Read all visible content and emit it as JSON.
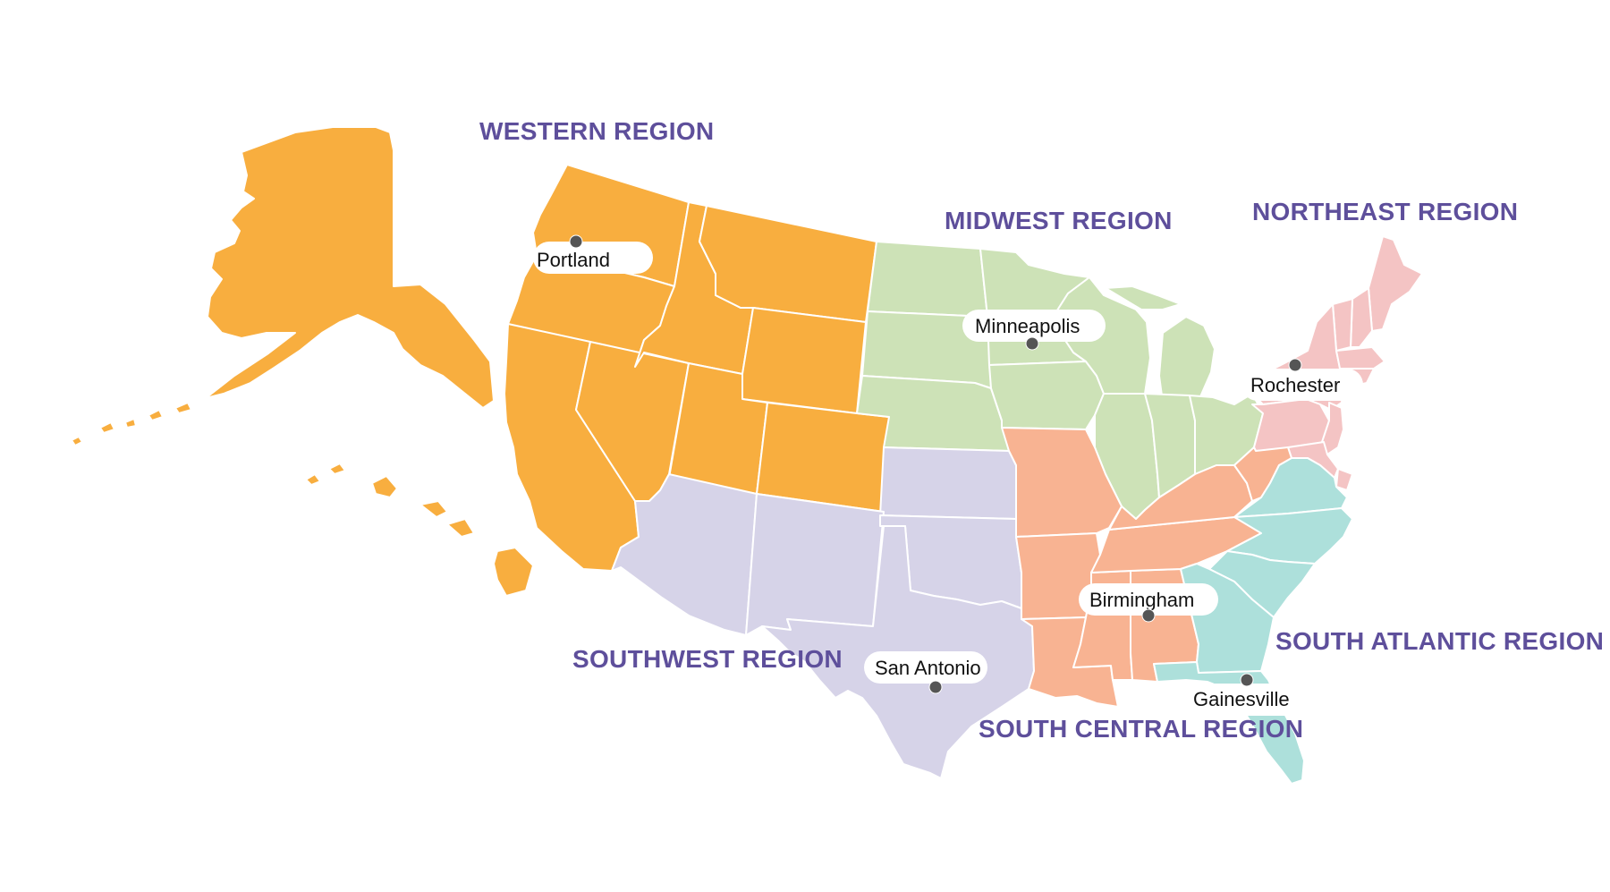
{
  "colors": {
    "western": "#f8ae3f",
    "midwest": "#cde2b7",
    "northeast": "#f4c4c4",
    "southwest": "#d6d3e8",
    "south_central": "#f8b392",
    "south_atlantic": "#ade0db",
    "label": "#5e4f9b",
    "city_dot": "#555555"
  },
  "regions": {
    "western": "WESTERN REGION",
    "midwest": "MIDWEST REGION",
    "northeast": "NORTHEAST REGION",
    "southwest": "SOUTHWEST REGION",
    "south_central": "SOUTH CENTRAL REGION",
    "south_atlantic": "SOUTH ATLANTIC REGION"
  },
  "cities": {
    "portland": "Portland",
    "minneapolis": "Minneapolis",
    "rochester": "Rochester",
    "san_antonio": "San Antonio",
    "birmingham": "Birmingham",
    "gainesville": "Gainesville"
  }
}
